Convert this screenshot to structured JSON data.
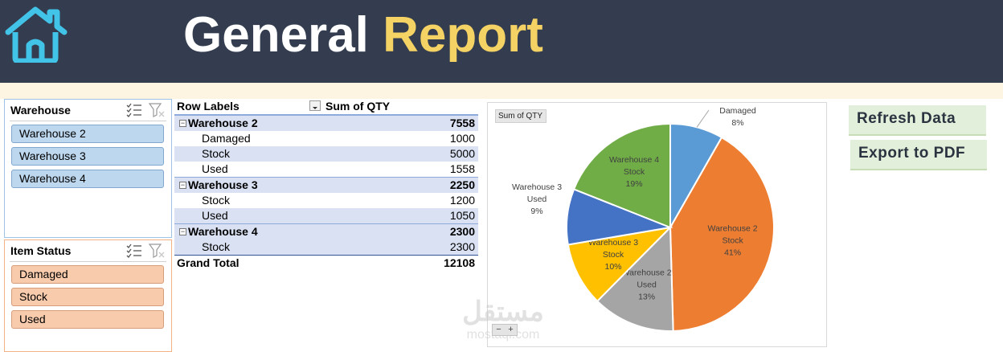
{
  "header": {
    "title_part1": "General",
    "title_part2": "Report",
    "home_icon": "home-icon",
    "title_colors": {
      "part1": "#ffffff",
      "part2": "#f5d264"
    },
    "background": "#333d4f"
  },
  "slicers": {
    "warehouse": {
      "title": "Warehouse",
      "items": [
        "Warehouse 2",
        "Warehouse 3",
        "Warehouse 4"
      ]
    },
    "item_status": {
      "title": "Item Status",
      "items": [
        "Damaged",
        "Stock",
        "Used"
      ]
    }
  },
  "pivot": {
    "col_row_labels": "Row Labels",
    "col_sum": "Sum of QTY",
    "groups": [
      {
        "label": "Warehouse 2",
        "total": "7558",
        "rows": [
          {
            "label": "Damaged",
            "value": "1000"
          },
          {
            "label": "Stock",
            "value": "5000"
          },
          {
            "label": "Used",
            "value": "1558"
          }
        ]
      },
      {
        "label": "Warehouse 3",
        "total": "2250",
        "rows": [
          {
            "label": "Stock",
            "value": "1200"
          },
          {
            "label": "Used",
            "value": "1050"
          }
        ]
      },
      {
        "label": "Warehouse 4",
        "total": "2300",
        "rows": [
          {
            "label": "Stock",
            "value": "2300"
          }
        ]
      }
    ],
    "grand_total_label": "Grand Total",
    "grand_total": "12108"
  },
  "chart_field_button": "Sum of QTY",
  "chart_data": {
    "type": "pie",
    "labels": [
      [
        "Warehouse 2",
        "Damaged"
      ],
      [
        "Warehouse 2",
        "Stock"
      ],
      [
        "Warehouse 2",
        "Used"
      ],
      [
        "Warehouse 3",
        "Stock"
      ],
      [
        "Warehouse 3",
        "Used"
      ],
      [
        "Warehouse 4",
        "Stock"
      ]
    ],
    "values": [
      1000,
      5000,
      1558,
      1200,
      1050,
      2300
    ],
    "percent_labels": [
      "8%",
      "41%",
      "13%",
      "10%",
      "9%",
      "19%"
    ],
    "colors": [
      "#5b9bd5",
      "#ed7d31",
      "#a5a5a5",
      "#ffc000",
      "#4472c4",
      "#70ad47"
    ]
  },
  "zoom_controls": {
    "minus": "−",
    "plus": "+"
  },
  "buttons": {
    "refresh": "Refresh Data",
    "export": "Export to PDF"
  },
  "watermark": {
    "arabic": "مستقل",
    "latin": "mostaql.com"
  }
}
